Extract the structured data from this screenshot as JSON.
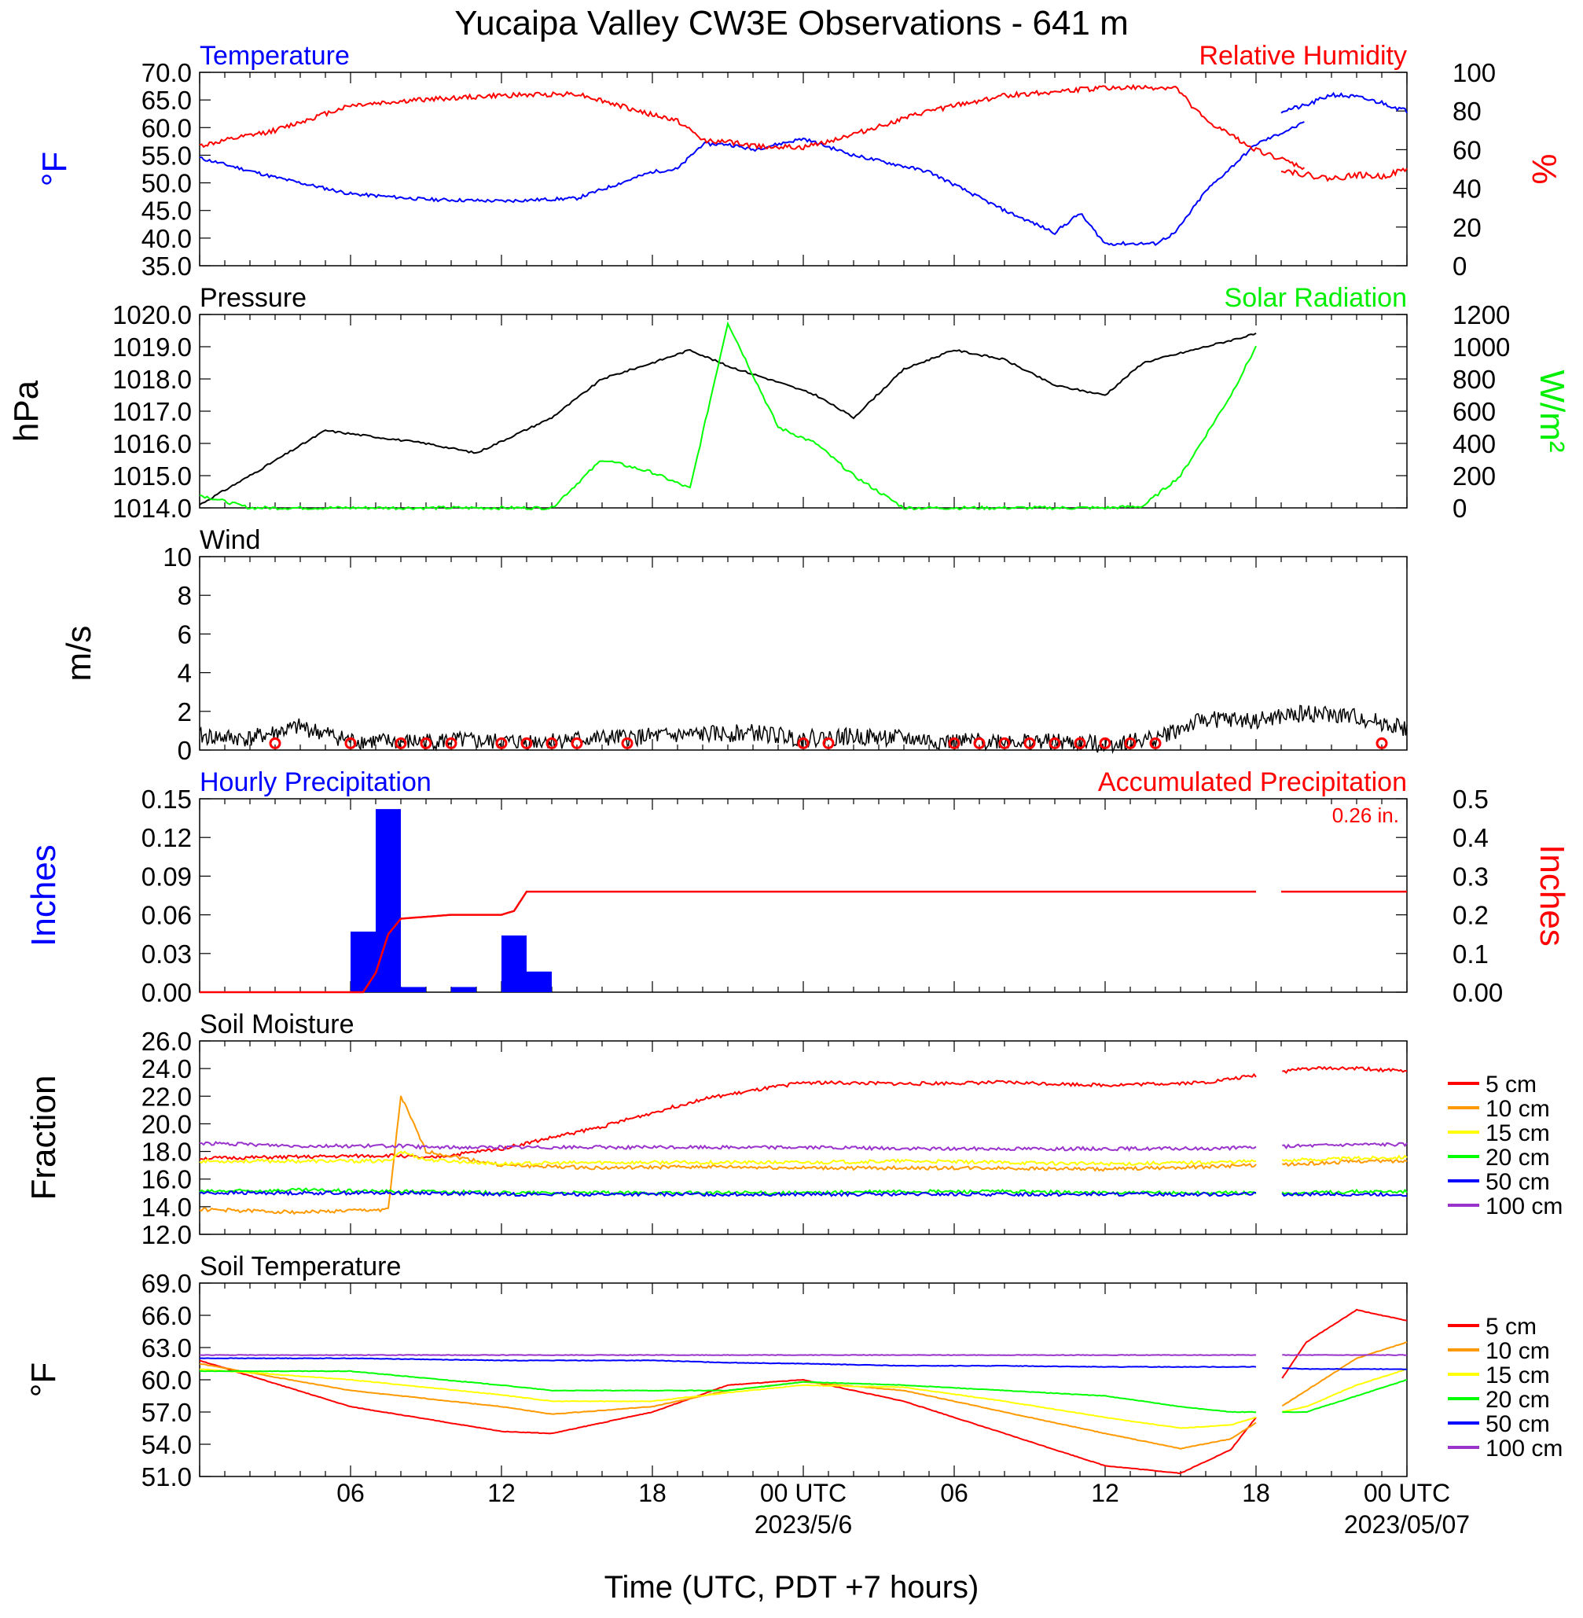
{
  "title": "Yucaipa Valley CW3E Observations - 641 m",
  "xaxis": {
    "title": "Time (UTC, PDT +7 hours)",
    "ticks": [
      "06",
      "12",
      "18",
      "00 UTC",
      "06",
      "12",
      "18",
      "00 UTC"
    ],
    "dates": [
      "2023/5/6",
      "2023/05/07"
    ]
  },
  "chart_data": [
    {
      "type": "line",
      "title_left": "Temperature",
      "title_right": "Relative Humidity",
      "ylabel_left": "°F",
      "ylabel_right": "%",
      "ylim_left": [
        35,
        70
      ],
      "ylim_right": [
        0,
        100
      ],
      "yticks_left": [
        "70.0",
        "65.0",
        "60.0",
        "55.0",
        "50.0",
        "45.0",
        "40.0",
        "35.0"
      ],
      "yticks_right": [
        "100",
        "80",
        "60",
        "40",
        "20",
        "0"
      ],
      "x_hours": [
        0,
        3,
        6,
        9,
        12,
        15,
        18,
        19,
        20,
        21,
        22,
        24,
        26,
        29,
        32,
        34,
        35,
        36,
        38,
        38.8,
        40,
        42,
        44,
        46,
        47
      ],
      "series": [
        {
          "name": "Temperature",
          "axis": "left",
          "color": "#0000ff",
          "values": [
            54.5,
            51,
            48,
            47,
            46.7,
            47.2,
            52,
            52.5,
            57,
            57,
            56,
            58,
            55,
            52,
            45,
            41,
            44.5,
            39,
            39,
            41,
            48.5,
            57,
            61,
            null,
            null
          ]
        },
        {
          "name": "Relative Humidity",
          "axis": "right",
          "color": "#ff0000",
          "values": [
            62,
            70,
            83,
            86,
            88,
            89,
            78,
            75,
            65,
            64,
            62,
            61,
            68,
            80,
            88,
            90,
            91,
            92,
            92,
            92,
            75,
            60,
            50,
            null,
            null
          ]
        }
      ],
      "second_segment_hours": [
        43,
        44,
        45,
        46,
        47,
        48
      ],
      "second_segment": {
        "Temperature": [
          63,
          64,
          66,
          65.5,
          64.5,
          63
        ],
        "Relative Humidity": [
          50,
          47,
          45,
          47,
          46,
          50
        ]
      }
    },
    {
      "type": "line",
      "title_left": "Pressure",
      "title_right": "Solar Radiation",
      "ylabel_left": "hPa",
      "ylabel_right": "W/m²",
      "ylim_left": [
        1014,
        1020
      ],
      "ylim_right": [
        0,
        1200
      ],
      "yticks_left": [
        "1020.0",
        "1019.0",
        "1018.0",
        "1017.0",
        "1016.0",
        "1015.0",
        "1014.0"
      ],
      "yticks_right": [
        "1200",
        "1000",
        "800",
        "600",
        "400",
        "200",
        "0"
      ],
      "x_hours": [
        0,
        2,
        5,
        9,
        11,
        14,
        16,
        18,
        19.5,
        21,
        23,
        24.5,
        26,
        28,
        30,
        32,
        34,
        36,
        37.5,
        39,
        41,
        42
      ],
      "series": [
        {
          "name": "Pressure",
          "axis": "left",
          "color": "#000000",
          "values": [
            1014.1,
            1015,
            1016.4,
            1016,
            1015.7,
            1016.8,
            1018,
            1018.5,
            1018.9,
            1018.4,
            1017.9,
            1017.5,
            1016.8,
            1018.3,
            1018.9,
            1018.6,
            1017.8,
            1017.5,
            1018.5,
            1018.8,
            1019.2,
            1019.4
          ]
        },
        {
          "name": "Solar Radiation",
          "axis": "right",
          "color": "#00ff00",
          "values": [
            80,
            0,
            0,
            0,
            0,
            0,
            300,
            220,
            120,
            1150,
            500,
            400,
            200,
            0,
            0,
            0,
            0,
            0,
            10,
            200,
            700,
            1000
          ]
        }
      ]
    },
    {
      "type": "line",
      "title_left": "Wind",
      "ylabel_left": "m/s",
      "ylim_left": [
        0,
        10
      ],
      "yticks_left": [
        "10",
        "8",
        "6",
        "4",
        "2",
        "0"
      ],
      "x_hours": [
        0,
        2,
        4,
        6,
        8,
        10,
        12,
        14,
        16,
        18,
        20,
        22,
        24,
        26,
        28,
        30,
        32,
        34,
        36,
        38,
        40,
        42,
        44,
        46,
        48
      ],
      "series": [
        {
          "name": "Wind speed",
          "axis": "left",
          "color": "#000000",
          "values": [
            0.7,
            0.6,
            1.2,
            0.5,
            0.4,
            0.5,
            0.4,
            0.5,
            0.6,
            0.7,
            0.8,
            0.9,
            0.6,
            0.7,
            0.6,
            0.4,
            0.5,
            0.4,
            0.3,
            0.6,
            1.6,
            1.5,
            1.9,
            1.7,
            1.1
          ]
        }
      ],
      "calm_markers_hours": [
        3,
        6,
        8,
        9,
        10,
        12,
        13,
        14,
        15,
        17,
        24,
        25,
        30,
        31,
        32,
        33,
        34,
        35,
        36,
        37,
        38,
        47
      ]
    },
    {
      "type": "bar",
      "title_left": "Hourly Precipitation",
      "title_right": "Accumulated Precipitation",
      "annotation": "0.26 in.",
      "ylabel_left": "Inches",
      "ylabel_right": "Inches",
      "ylim_left": [
        0,
        0.15
      ],
      "ylim_right": [
        0,
        0.5
      ],
      "yticks_left": [
        "0.15",
        "0.12",
        "0.09",
        "0.06",
        "0.03",
        "0.00"
      ],
      "yticks_right": [
        "0.5",
        "0.4",
        "0.3",
        "0.2",
        "0.1",
        "0.00"
      ],
      "bar_hours": [
        6,
        7,
        8,
        10,
        12,
        13
      ],
      "series": [
        {
          "name": "Hourly Precipitation",
          "axis": "left",
          "color": "#0000ff",
          "values": [
            0.047,
            0.142,
            0.004,
            0.004,
            0.044,
            0.016
          ]
        },
        {
          "name": "Accumulated Precipitation",
          "axis": "right",
          "color": "#ff0000",
          "x_hours": [
            0,
            6.5,
            7,
            7.5,
            8,
            9,
            10,
            11,
            12,
            12.5,
            13,
            14,
            42
          ],
          "values": [
            0,
            0,
            0.05,
            0.15,
            0.19,
            0.195,
            0.2,
            0.2,
            0.2,
            0.21,
            0.26,
            0.26,
            0.26
          ]
        }
      ]
    },
    {
      "type": "line",
      "title_left": "Soil Moisture",
      "ylabel_left": "Fraction",
      "ylim_left": [
        12,
        26
      ],
      "yticks_left": [
        "26.0",
        "24.0",
        "22.0",
        "20.0",
        "18.0",
        "16.0",
        "14.0",
        "12.0"
      ],
      "x_hours": [
        0,
        4,
        7.5,
        8,
        9,
        12,
        16,
        20,
        24,
        28,
        32,
        36,
        40,
        42,
        44,
        46,
        48
      ],
      "series": [
        {
          "name": "5 cm",
          "color": "#ff0000",
          "values": [
            17.5,
            17.6,
            17.7,
            17.7,
            17.5,
            18.2,
            19.8,
            21.8,
            23,
            22.9,
            23,
            22.8,
            23,
            23.5,
            24,
            24,
            23.8
          ]
        },
        {
          "name": "10 cm",
          "color": "#ff9900",
          "values": [
            13.8,
            13.6,
            13.8,
            22,
            18,
            17,
            16.8,
            16.9,
            16.8,
            16.8,
            16.8,
            16.7,
            16.9,
            17,
            17.1,
            17.3,
            17.3
          ]
        },
        {
          "name": "15 cm",
          "color": "#ffff00",
          "values": [
            17.3,
            17.3,
            17.3,
            18,
            17.4,
            17.1,
            17.2,
            17.2,
            17.2,
            17.3,
            17.2,
            17.1,
            17.2,
            17.3,
            17.4,
            17.5,
            17.6
          ]
        },
        {
          "name": "20 cm",
          "color": "#00ff00",
          "values": [
            15.1,
            15.2,
            15.1,
            15.1,
            15.1,
            15.0,
            15.0,
            15.0,
            15.0,
            15.1,
            15.1,
            15.0,
            15.0,
            15.0,
            15.0,
            15.1,
            15.1
          ]
        },
        {
          "name": "50 cm",
          "color": "#0000ff",
          "values": [
            15.0,
            15.0,
            15.0,
            15.0,
            15.0,
            14.9,
            14.9,
            14.9,
            14.9,
            14.9,
            14.9,
            14.9,
            14.9,
            14.9,
            14.9,
            14.9,
            14.9
          ]
        },
        {
          "name": "100 cm",
          "color": "#9933cc",
          "values": [
            18.6,
            18.4,
            18.4,
            18.4,
            18.3,
            18.3,
            18.3,
            18.3,
            18.3,
            18.2,
            18.2,
            18.2,
            18.2,
            18.3,
            18.4,
            18.5,
            18.5
          ]
        }
      ]
    },
    {
      "type": "line",
      "title_left": "Soil Temperature",
      "ylabel_left": "°F",
      "ylim_left": [
        51,
        69
      ],
      "yticks_left": [
        "69.0",
        "66.0",
        "63.0",
        "60.0",
        "57.0",
        "54.0",
        "51.0"
      ],
      "x_hours": [
        0,
        6,
        12,
        14,
        18,
        21,
        24,
        28,
        32,
        36,
        39,
        41,
        42,
        44,
        46,
        48
      ],
      "series": [
        {
          "name": "5 cm",
          "color": "#ff0000",
          "values": [
            61.8,
            57.5,
            55.2,
            55.0,
            57.0,
            59.5,
            60.0,
            58.0,
            55.0,
            52.0,
            51.3,
            53.5,
            56.5,
            63.5,
            66.5,
            65.5
          ]
        },
        {
          "name": "10 cm",
          "color": "#ff9900",
          "values": [
            61.5,
            59.0,
            57.5,
            56.8,
            57.5,
            59.0,
            59.8,
            59.0,
            57.0,
            55.0,
            53.6,
            54.5,
            56.0,
            59.0,
            62.0,
            63.5
          ]
        },
        {
          "name": "15 cm",
          "color": "#ffff00",
          "values": [
            61.0,
            60.0,
            58.6,
            58.0,
            58.0,
            58.8,
            59.5,
            59.3,
            58.0,
            56.5,
            55.5,
            55.8,
            56.5,
            57.5,
            59.5,
            61.0
          ]
        },
        {
          "name": "20 cm",
          "color": "#00ff00",
          "values": [
            60.8,
            60.8,
            59.5,
            59.0,
            59.0,
            59.0,
            59.8,
            59.5,
            59.0,
            58.5,
            57.5,
            57.0,
            57.0,
            57.0,
            58.5,
            60.0
          ]
        },
        {
          "name": "50 cm",
          "color": "#0000ff",
          "values": [
            62.0,
            62.0,
            61.8,
            61.8,
            61.8,
            61.6,
            61.5,
            61.3,
            61.3,
            61.2,
            61.2,
            61.2,
            61.2,
            61.0,
            61.0,
            61.0
          ]
        },
        {
          "name": "100 cm",
          "color": "#9933cc",
          "values": [
            62.3,
            62.3,
            62.3,
            62.3,
            62.3,
            62.3,
            62.3,
            62.3,
            62.3,
            62.3,
            62.3,
            62.3,
            62.3,
            62.3,
            62.3,
            62.3
          ]
        }
      ]
    }
  ]
}
